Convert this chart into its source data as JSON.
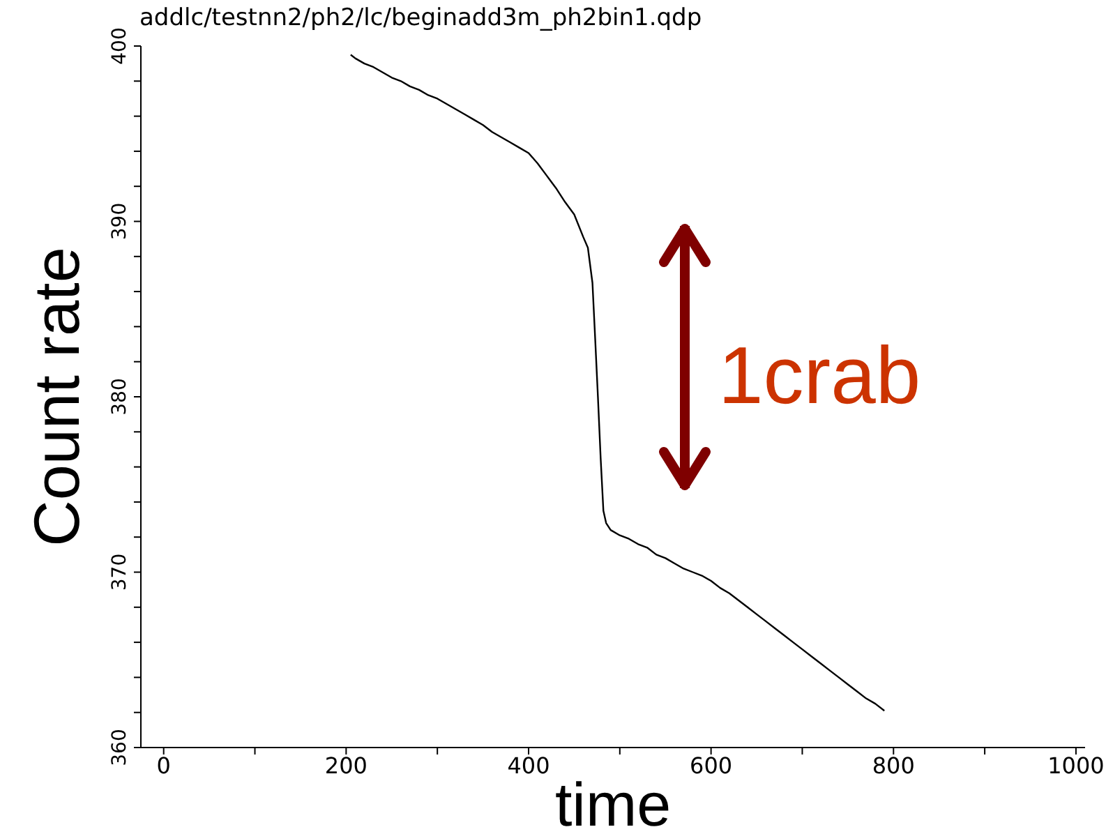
{
  "chart_data": {
    "type": "line",
    "title": "addlc/testnn2/ph2/lc/beginadd3m_ph2bin1.qdp",
    "xlabel": "time",
    "ylabel": "Count rate",
    "annotations": [
      "1crab"
    ],
    "x": [
      205,
      210,
      220,
      230,
      240,
      250,
      260,
      270,
      280,
      290,
      300,
      310,
      320,
      330,
      340,
      350,
      360,
      370,
      380,
      390,
      400,
      410,
      420,
      430,
      440,
      450,
      460,
      465,
      470,
      473,
      476,
      479,
      482,
      485,
      490,
      500,
      510,
      520,
      530,
      540,
      550,
      560,
      570,
      580,
      590,
      600,
      610,
      620,
      630,
      640,
      650,
      660,
      670,
      680,
      690,
      700,
      710,
      720,
      730,
      740,
      750,
      760,
      770,
      780,
      790
    ],
    "series": [
      {
        "color": "#000000",
        "values": [
          399.5,
          399.3,
          399.0,
          398.8,
          398.5,
          398.2,
          398.0,
          397.7,
          397.5,
          397.2,
          397.0,
          396.7,
          396.4,
          396.1,
          395.8,
          395.5,
          395.1,
          394.8,
          394.5,
          394.2,
          393.9,
          393.3,
          392.6,
          391.9,
          391.1,
          390.4,
          389.1,
          388.5,
          386.5,
          383.3,
          380.0,
          376.5,
          373.5,
          372.8,
          372.4,
          372.1,
          371.9,
          371.6,
          371.4,
          371.0,
          370.8,
          370.5,
          370.2,
          370.0,
          369.8,
          369.5,
          369.1,
          368.8,
          368.4,
          368.0,
          367.6,
          367.2,
          366.8,
          366.4,
          366.0,
          365.6,
          365.2,
          364.8,
          364.4,
          364.0,
          363.6,
          363.2,
          362.8,
          362.5,
          362.1
        ]
      }
    ],
    "xlim": [
      -25,
      1010
    ],
    "ylim": [
      360,
      400
    ],
    "xticks": [
      0,
      {
        "value": 100,
        "label": null
      },
      200,
      {
        "value": 300,
        "label": null
      },
      400,
      {
        "value": 500,
        "label": null
      },
      600,
      {
        "value": 700,
        "label": null
      },
      800,
      {
        "value": 900,
        "label": null
      },
      1000
    ],
    "yticks": [
      360,
      {
        "value": 362,
        "label": null
      },
      {
        "value": 364,
        "label": null
      },
      {
        "value": 366,
        "label": null
      },
      {
        "value": 368,
        "label": null
      },
      370,
      {
        "value": 372,
        "label": null
      },
      {
        "value": 374,
        "label": null
      },
      {
        "value": 376,
        "label": null
      },
      {
        "value": 378,
        "label": null
      },
      380,
      {
        "value": 382,
        "label": null
      },
      {
        "value": 384,
        "label": null
      },
      {
        "value": 386,
        "label": null
      },
      {
        "value": 388,
        "label": null
      },
      390,
      {
        "value": 392,
        "label": null
      },
      {
        "value": 394,
        "label": null
      },
      {
        "value": 396,
        "label": null
      },
      {
        "value": 398,
        "label": null
      },
      400
    ],
    "grid": false,
    "legend": false,
    "marker": "none",
    "line_style": "solid"
  }
}
